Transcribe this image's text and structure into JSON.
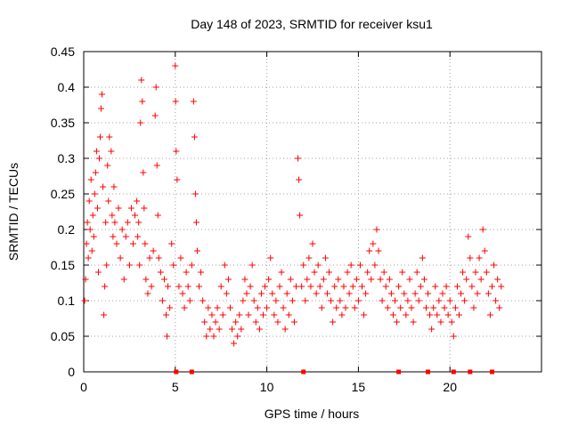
{
  "chart_data": {
    "type": "scatter",
    "title": "Day 148 of 2023, SRMTID for receiver ksu1",
    "xlabel": "GPS time / hours",
    "ylabel": "SRMTID / TECUs",
    "xlim": [
      0,
      25
    ],
    "ylim": [
      0,
      0.45
    ],
    "x_ticks": [
      "0",
      "5",
      "10",
      "15",
      "20"
    ],
    "y_ticks": [
      "0",
      "0.05",
      "0.1",
      "0.15",
      "0.2",
      "0.25",
      "0.3",
      "0.35",
      "0.4",
      "0.45"
    ],
    "grid": true,
    "marker": "plus",
    "series_color": "#ff0000",
    "zero_markers_x": [
      5.05,
      5.9,
      12.0,
      17.2,
      18.8,
      20.2,
      21.1,
      22.3
    ],
    "series": [
      {
        "name": "SRMTID",
        "points": [
          [
            0.05,
            0.1
          ],
          [
            0.1,
            0.13
          ],
          [
            0.15,
            0.18
          ],
          [
            0.2,
            0.21
          ],
          [
            0.25,
            0.16
          ],
          [
            0.3,
            0.24
          ],
          [
            0.35,
            0.2
          ],
          [
            0.4,
            0.27
          ],
          [
            0.45,
            0.17
          ],
          [
            0.5,
            0.22
          ],
          [
            0.55,
            0.19
          ],
          [
            0.6,
            0.25
          ],
          [
            0.65,
            0.28
          ],
          [
            0.7,
            0.31
          ],
          [
            0.75,
            0.23
          ],
          [
            0.8,
            0.14
          ],
          [
            0.85,
            0.3
          ],
          [
            0.9,
            0.33
          ],
          [
            0.95,
            0.37
          ],
          [
            1.0,
            0.39
          ],
          [
            1.05,
            0.26
          ],
          [
            1.1,
            0.08
          ],
          [
            1.15,
            0.12
          ],
          [
            1.2,
            0.21
          ],
          [
            1.25,
            0.15
          ],
          [
            1.3,
            0.29
          ],
          [
            1.35,
            0.24
          ],
          [
            1.4,
            0.33
          ],
          [
            1.5,
            0.31
          ],
          [
            1.55,
            0.22
          ],
          [
            1.6,
            0.19
          ],
          [
            1.65,
            0.26
          ],
          [
            1.7,
            0.21
          ],
          [
            1.8,
            0.18
          ],
          [
            1.9,
            0.23
          ],
          [
            2.0,
            0.16
          ],
          [
            2.1,
            0.2
          ],
          [
            2.2,
            0.13
          ],
          [
            2.3,
            0.19
          ],
          [
            2.4,
            0.21
          ],
          [
            2.5,
            0.15
          ],
          [
            2.6,
            0.23
          ],
          [
            2.7,
            0.18
          ],
          [
            2.8,
            0.22
          ],
          [
            2.9,
            0.24
          ],
          [
            2.95,
            0.19
          ],
          [
            3.0,
            0.21
          ],
          [
            3.05,
            0.15
          ],
          [
            3.1,
            0.35
          ],
          [
            3.15,
            0.41
          ],
          [
            3.2,
            0.38
          ],
          [
            3.25,
            0.28
          ],
          [
            3.3,
            0.23
          ],
          [
            3.35,
            0.18
          ],
          [
            3.4,
            0.13
          ],
          [
            3.5,
            0.11
          ],
          [
            3.6,
            0.16
          ],
          [
            3.7,
            0.12
          ],
          [
            3.8,
            0.17
          ],
          [
            3.9,
            0.36
          ],
          [
            3.95,
            0.4
          ],
          [
            4.0,
            0.29
          ],
          [
            4.05,
            0.22
          ],
          [
            4.1,
            0.16
          ],
          [
            4.2,
            0.14
          ],
          [
            4.3,
            0.1
          ],
          [
            4.4,
            0.13
          ],
          [
            4.5,
            0.08
          ],
          [
            4.55,
            0.05
          ],
          [
            4.6,
            0.12
          ],
          [
            4.7,
            0.09
          ],
          [
            4.8,
            0.18
          ],
          [
            4.9,
            0.15
          ],
          [
            5.0,
            0.43
          ],
          [
            5.02,
            0.38
          ],
          [
            5.05,
            0.31
          ],
          [
            5.1,
            0.27
          ],
          [
            5.2,
            0.12
          ],
          [
            5.3,
            0.16
          ],
          [
            5.4,
            0.11
          ],
          [
            5.5,
            0.09
          ],
          [
            5.6,
            0.14
          ],
          [
            5.7,
            0.12
          ],
          [
            5.8,
            0.1
          ],
          [
            5.9,
            0.15
          ],
          [
            6.0,
            0.38
          ],
          [
            6.05,
            0.33
          ],
          [
            6.1,
            0.25
          ],
          [
            6.15,
            0.21
          ],
          [
            6.2,
            0.17
          ],
          [
            6.3,
            0.12
          ],
          [
            6.4,
            0.14
          ],
          [
            6.5,
            0.1
          ],
          [
            6.6,
            0.07
          ],
          [
            6.7,
            0.05
          ],
          [
            6.8,
            0.09
          ],
          [
            6.9,
            0.06
          ],
          [
            7.0,
            0.08
          ],
          [
            7.1,
            0.05
          ],
          [
            7.2,
            0.07
          ],
          [
            7.3,
            0.09
          ],
          [
            7.4,
            0.06
          ],
          [
            7.5,
            0.12
          ],
          [
            7.6,
            0.08
          ],
          [
            7.7,
            0.15
          ],
          [
            7.8,
            0.11
          ],
          [
            7.9,
            0.13
          ],
          [
            8.0,
            0.09
          ],
          [
            8.1,
            0.06
          ],
          [
            8.2,
            0.04
          ],
          [
            8.3,
            0.07
          ],
          [
            8.4,
            0.05
          ],
          [
            8.5,
            0.08
          ],
          [
            8.6,
            0.06
          ],
          [
            8.7,
            0.1
          ],
          [
            8.8,
            0.13
          ],
          [
            8.9,
            0.11
          ],
          [
            9.0,
            0.08
          ],
          [
            9.1,
            0.12
          ],
          [
            9.2,
            0.15
          ],
          [
            9.3,
            0.1
          ],
          [
            9.4,
            0.07
          ],
          [
            9.5,
            0.09
          ],
          [
            9.6,
            0.06
          ],
          [
            9.7,
            0.11
          ],
          [
            9.8,
            0.08
          ],
          [
            9.9,
            0.12
          ],
          [
            10.0,
            0.09
          ],
          [
            10.1,
            0.13
          ],
          [
            10.2,
            0.16
          ],
          [
            10.3,
            0.11
          ],
          [
            10.4,
            0.08
          ],
          [
            10.5,
            0.1
          ],
          [
            10.6,
            0.07
          ],
          [
            10.7,
            0.12
          ],
          [
            10.8,
            0.14
          ],
          [
            10.9,
            0.09
          ],
          [
            11.0,
            0.06
          ],
          [
            11.1,
            0.11
          ],
          [
            11.2,
            0.08
          ],
          [
            11.3,
            0.13
          ],
          [
            11.4,
            0.1
          ],
          [
            11.5,
            0.07
          ],
          [
            11.6,
            0.12
          ],
          [
            11.7,
            0.3
          ],
          [
            11.75,
            0.27
          ],
          [
            11.8,
            0.22
          ],
          [
            11.9,
            0.12
          ],
          [
            12.0,
            0.15
          ],
          [
            12.1,
            0.1
          ],
          [
            12.2,
            0.13
          ],
          [
            12.3,
            0.16
          ],
          [
            12.4,
            0.12
          ],
          [
            12.5,
            0.18
          ],
          [
            12.6,
            0.14
          ],
          [
            12.7,
            0.11
          ],
          [
            12.8,
            0.15
          ],
          [
            12.9,
            0.12
          ],
          [
            13.0,
            0.09
          ],
          [
            13.1,
            0.13
          ],
          [
            13.2,
            0.16
          ],
          [
            13.3,
            0.11
          ],
          [
            13.4,
            0.14
          ],
          [
            13.5,
            0.1
          ],
          [
            13.6,
            0.07
          ],
          [
            13.7,
            0.12
          ],
          [
            13.8,
            0.09
          ],
          [
            13.9,
            0.13
          ],
          [
            14.0,
            0.1
          ],
          [
            14.1,
            0.08
          ],
          [
            14.2,
            0.12
          ],
          [
            14.3,
            0.09
          ],
          [
            14.4,
            0.14
          ],
          [
            14.5,
            0.11
          ],
          [
            14.6,
            0.15
          ],
          [
            14.7,
            0.12
          ],
          [
            14.8,
            0.09
          ],
          [
            14.9,
            0.13
          ],
          [
            15.0,
            0.1
          ],
          [
            15.1,
            0.15
          ],
          [
            15.2,
            0.12
          ],
          [
            15.3,
            0.08
          ],
          [
            15.4,
            0.11
          ],
          [
            15.5,
            0.14
          ],
          [
            15.6,
            0.17
          ],
          [
            15.7,
            0.13
          ],
          [
            15.8,
            0.18
          ],
          [
            15.9,
            0.15
          ],
          [
            16.0,
            0.2
          ],
          [
            16.1,
            0.17
          ],
          [
            16.2,
            0.13
          ],
          [
            16.3,
            0.1
          ],
          [
            16.4,
            0.14
          ],
          [
            16.5,
            0.12
          ],
          [
            16.6,
            0.09
          ],
          [
            16.7,
            0.13
          ],
          [
            16.8,
            0.11
          ],
          [
            16.9,
            0.08
          ],
          [
            17.0,
            0.1
          ],
          [
            17.1,
            0.07
          ],
          [
            17.2,
            0.12
          ],
          [
            17.3,
            0.09
          ],
          [
            17.4,
            0.14
          ],
          [
            17.5,
            0.11
          ],
          [
            17.6,
            0.08
          ],
          [
            17.7,
            0.1
          ],
          [
            17.8,
            0.13
          ],
          [
            17.9,
            0.09
          ],
          [
            18.0,
            0.07
          ],
          [
            18.1,
            0.11
          ],
          [
            18.2,
            0.14
          ],
          [
            18.3,
            0.1
          ],
          [
            18.4,
            0.12
          ],
          [
            18.5,
            0.16
          ],
          [
            18.6,
            0.13
          ],
          [
            18.7,
            0.09
          ],
          [
            18.8,
            0.11
          ],
          [
            18.9,
            0.08
          ],
          [
            19.0,
            0.06
          ],
          [
            19.1,
            0.09
          ],
          [
            19.2,
            0.12
          ],
          [
            19.3,
            0.08
          ],
          [
            19.4,
            0.1
          ],
          [
            19.5,
            0.07
          ],
          [
            19.6,
            0.11
          ],
          [
            19.7,
            0.09
          ],
          [
            19.8,
            0.12
          ],
          [
            19.9,
            0.08
          ],
          [
            20.0,
            0.1
          ],
          [
            20.1,
            0.07
          ],
          [
            20.2,
            0.05
          ],
          [
            20.3,
            0.09
          ],
          [
            20.4,
            0.12
          ],
          [
            20.5,
            0.08
          ],
          [
            20.6,
            0.11
          ],
          [
            20.7,
            0.14
          ],
          [
            20.8,
            0.1
          ],
          [
            20.9,
            0.13
          ],
          [
            21.0,
            0.19
          ],
          [
            21.1,
            0.16
          ],
          [
            21.2,
            0.12
          ],
          [
            21.3,
            0.09
          ],
          [
            21.4,
            0.14
          ],
          [
            21.5,
            0.11
          ],
          [
            21.6,
            0.16
          ],
          [
            21.7,
            0.13
          ],
          [
            21.8,
            0.2
          ],
          [
            21.9,
            0.17
          ],
          [
            22.0,
            0.14
          ],
          [
            22.1,
            0.11
          ],
          [
            22.2,
            0.08
          ],
          [
            22.3,
            0.12
          ],
          [
            22.4,
            0.15
          ],
          [
            22.5,
            0.1
          ],
          [
            22.6,
            0.13
          ],
          [
            22.7,
            0.09
          ],
          [
            22.8,
            0.12
          ]
        ]
      }
    ]
  }
}
